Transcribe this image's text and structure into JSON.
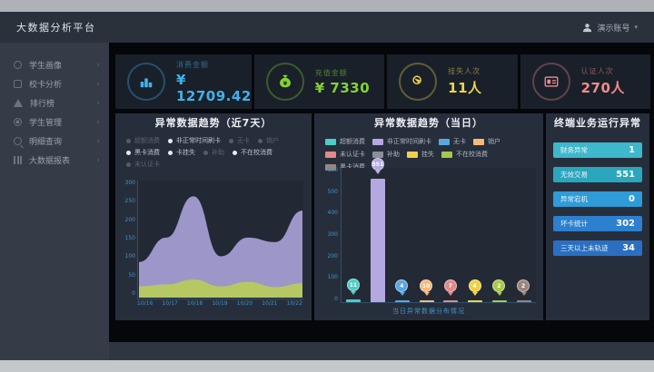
{
  "app": {
    "title": "大数据分析平台",
    "user": {
      "name": "演示账号",
      "caret": "▾"
    }
  },
  "sidebar": {
    "items": [
      {
        "label": "学生画像",
        "icon": "student-portrait-icon",
        "shape": "round",
        "chevron": "›"
      },
      {
        "label": "校卡分析",
        "icon": "card-analysis-icon",
        "shape": "card",
        "chevron": "›"
      },
      {
        "label": "排行榜",
        "icon": "ranking-icon",
        "shape": "tri",
        "chevron": "›"
      },
      {
        "label": "学生管理",
        "icon": "student-management-icon",
        "shape": "gear",
        "chevron": "›"
      },
      {
        "label": "明细查询",
        "icon": "detail-query-icon",
        "shape": "mag",
        "chevron": "›"
      },
      {
        "label": "大数据报表",
        "icon": "bigdata-report-icon",
        "shape": "bars",
        "chevron": "›"
      }
    ]
  },
  "kpis": [
    {
      "label": "消费金额",
      "value": "¥ 12709.42",
      "color": "#41b1ea",
      "icon": "coins-icon"
    },
    {
      "label": "充值金额",
      "value": "¥ 7330",
      "color": "#85d231",
      "icon": "moneybag-icon"
    },
    {
      "label": "挂失人次",
      "value": "11人",
      "color": "#f2d44a",
      "icon": "touch-icon"
    },
    {
      "label": "认证人次",
      "value": "270人",
      "color": "#f18c8c",
      "icon": "idcard-icon"
    }
  ],
  "chart_data": [
    {
      "type": "area",
      "title": "异常数据趋势（近7天）",
      "x": [
        "10/16",
        "10/17",
        "10/18",
        "10/19",
        "10/20",
        "10/21",
        "10/22"
      ],
      "series": [
        {
          "name": "非正常时间刷卡",
          "color": "#a8a0d6",
          "values": [
            95,
            160,
            270,
            110,
            160,
            148,
            232
          ]
        },
        {
          "name": "不在校消费",
          "color": "#b9cc5a",
          "values": [
            30,
            35,
            48,
            30,
            42,
            28,
            38
          ]
        }
      ],
      "ylim": [
        0,
        300
      ],
      "yticks": [
        0,
        50,
        100,
        150,
        200,
        250,
        300
      ],
      "grid": false,
      "legend_position": "top",
      "legend": [
        {
          "label": "超额消费",
          "dim": true
        },
        {
          "label": "非正常时间刷卡",
          "dim": false
        },
        {
          "label": "无卡",
          "dim": true
        },
        {
          "label": "销户",
          "dim": true
        },
        {
          "label": "黑卡消费",
          "dim": false
        },
        {
          "label": "卡挂失",
          "dim": false
        },
        {
          "label": "补助",
          "dim": true
        },
        {
          "label": "不在校消费",
          "dim": false
        },
        {
          "label": "未认证卡",
          "dim": true
        }
      ]
    },
    {
      "type": "bar",
      "title": "异常数据趋势（当日）",
      "categories": [
        "超额消费",
        "非正常时间刷卡",
        "无卡",
        "销户",
        "未认证卡",
        "挂失",
        "不在校消费",
        "黑卡消费"
      ],
      "values": [
        11,
        551,
        4,
        10,
        7,
        4,
        2,
        2
      ],
      "colors": [
        "#4ecdc4",
        "#b3a8e0",
        "#5aa7e0",
        "#f5b97f",
        "#e08a8a",
        "#f0d048",
        "#a8c84a",
        "#9a8580"
      ],
      "ylim": [
        0,
        600
      ],
      "yticks": [
        0,
        100,
        200,
        300,
        400,
        500,
        600
      ],
      "grid": false,
      "legend_position": "top",
      "legend": [
        {
          "label": "超额消费",
          "color": "#4ecdc4"
        },
        {
          "label": "非正常时间刷卡",
          "color": "#b3a8e0"
        },
        {
          "label": "无卡",
          "color": "#5aa7e0"
        },
        {
          "label": "销户",
          "color": "#f5b97f"
        },
        {
          "label": "未认证卡",
          "color": "#e08a8a"
        },
        {
          "label": "补助",
          "color": "#8a9099"
        },
        {
          "label": "挂失",
          "color": "#f0d048"
        },
        {
          "label": "不在校消费",
          "color": "#a8c84a"
        },
        {
          "label": "黑卡消费",
          "color": "#9a8580"
        }
      ],
      "caption": "当日异常数据分布情况"
    }
  ],
  "stats_panel": {
    "title": "终端业务运行异常",
    "rows": [
      {
        "label": "财务异常",
        "value": "1",
        "color": "#3db8cc"
      },
      {
        "label": "无效交易",
        "value": "551",
        "color": "#2aa6bd"
      },
      {
        "label": "异常宕机",
        "value": "0",
        "color": "#2f9bd8"
      },
      {
        "label": "坏卡统计",
        "value": "302",
        "color": "#2c80cf"
      },
      {
        "label": "三天以上未轨迹",
        "value": "34",
        "color": "#2a6fc2"
      }
    ]
  }
}
